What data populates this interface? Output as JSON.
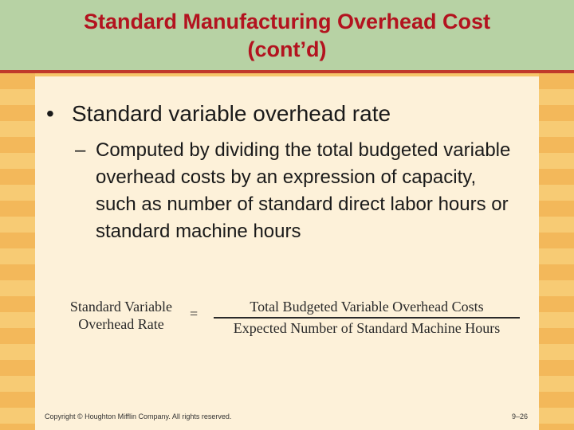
{
  "title": {
    "line1": "Standard Manufacturing Overhead Cost",
    "line2": "(cont’d)"
  },
  "bullet": {
    "marker": "•",
    "text": "Standard variable overhead rate"
  },
  "subbullet": {
    "marker": "–",
    "text": "Computed by dividing the total budgeted variable overhead costs by an expression of capacity, such as number of standard direct labor hours or standard machine hours"
  },
  "formula": {
    "lhs_line1": "Standard Variable",
    "lhs_line2": "Overhead Rate",
    "equals": "=",
    "numerator": "Total Budgeted Variable Overhead Costs",
    "denominator": "Expected Number of Standard Machine Hours"
  },
  "footer": {
    "copyright": "Copyright © Houghton Mifflin Company. All rights reserved.",
    "page": "9–26"
  },
  "colors": {
    "title_text": "#b3131f",
    "title_bg": "#b7d2a4",
    "panel_bg": "#fdf1d9",
    "stripe_bg": "#f3b85a"
  }
}
